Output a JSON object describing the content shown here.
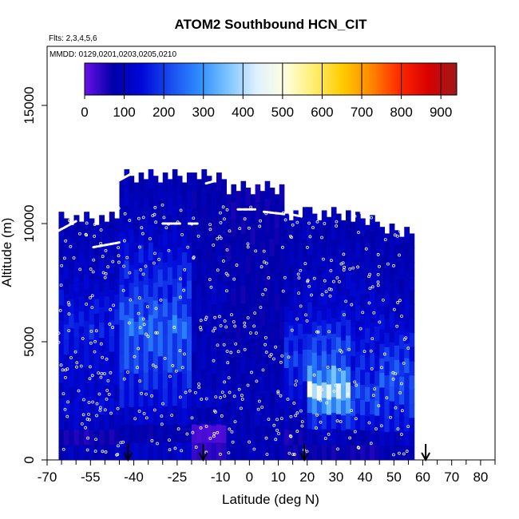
{
  "chart_data": {
    "type": "heatmap",
    "title": "ATOM2 Southbound HCN_CIT",
    "subtitle_flights": "Flts: 2,3,4,5,6",
    "subtitle_dates": "MMDD: 0129,0201,0203,0205,0210",
    "xlabel": "Latitude (deg N)",
    "ylabel": "Altitude (m)",
    "xlim": [
      -70,
      85
    ],
    "ylim": [
      0,
      17500
    ],
    "x_ticks": [
      -70,
      -55,
      -40,
      -25,
      -10,
      0,
      10,
      20,
      30,
      40,
      50,
      60,
      70,
      80
    ],
    "x_minor_ticks": [
      -65,
      -60,
      -50,
      -45,
      -35,
      -30,
      -20,
      -15,
      -5,
      5,
      15,
      25,
      35,
      45,
      55,
      65,
      75,
      85
    ],
    "y_ticks": [
      0,
      5000,
      10000,
      15000
    ],
    "colorbar": {
      "min": 0,
      "max": 940,
      "ticks": [
        0,
        100,
        200,
        300,
        400,
        500,
        600,
        700,
        800,
        900
      ],
      "colors": [
        "#6a10e8",
        "#0000a8",
        "#0008d8",
        "#1a4cf0",
        "#2e8cff",
        "#7cc4ff",
        "#dff0ff",
        "#ffffe0",
        "#ffee70",
        "#ffcc00",
        "#ff8800",
        "#ff2800",
        "#d80000",
        "#a01818"
      ]
    },
    "curtain_columns": [
      {
        "lat_from": -66,
        "lat_to": -45,
        "alt_top": 10500,
        "v": [
          95,
          60,
          110,
          130,
          120,
          125,
          130,
          140,
          160,
          150,
          140,
          120,
          110,
          100,
          95,
          90
        ]
      },
      {
        "lat_from": -45,
        "lat_to": -20,
        "alt_top": 12300,
        "v": [
          110,
          80,
          120,
          150,
          170,
          200,
          220,
          240,
          210,
          180,
          170,
          150,
          120,
          100,
          95,
          90
        ]
      },
      {
        "lat_from": -20,
        "lat_to": -8,
        "alt_top": 12300,
        "v": [
          40,
          20,
          90,
          110,
          100,
          95,
          100,
          90,
          100,
          100,
          90,
          85,
          80,
          80,
          80,
          80
        ]
      },
      {
        "lat_from": -8,
        "lat_to": 12,
        "alt_top": 11800,
        "v": [
          90,
          90,
          95,
          95,
          90,
          90,
          85,
          80,
          80,
          75,
          80,
          80,
          75,
          70,
          70,
          70
        ]
      },
      {
        "lat_from": 12,
        "lat_to": 20,
        "alt_top": 10700,
        "v": [
          70,
          60,
          90,
          110,
          140,
          170,
          190,
          170,
          150,
          130,
          110,
          100,
          90,
          90,
          90,
          90
        ]
      },
      {
        "lat_from": 20,
        "lat_to": 35,
        "alt_top": 10700,
        "v": [
          70,
          100,
          170,
          290,
          420,
          300,
          220,
          200,
          170,
          140,
          120,
          110,
          100,
          95,
          90,
          90
        ]
      },
      {
        "lat_from": 35,
        "lat_to": 45,
        "alt_top": 10500,
        "v": [
          60,
          90,
          140,
          200,
          200,
          180,
          160,
          150,
          140,
          130,
          120,
          110,
          100,
          95,
          90,
          90
        ]
      },
      {
        "lat_from": 45,
        "lat_to": 57,
        "alt_top": 10000,
        "v": [
          80,
          110,
          150,
          170,
          190,
          220,
          200,
          180,
          150,
          130,
          110,
          100,
          95,
          90,
          90,
          90
        ]
      }
    ],
    "arrow_markers_lat": [
      -42,
      -16,
      19,
      61
    ]
  }
}
